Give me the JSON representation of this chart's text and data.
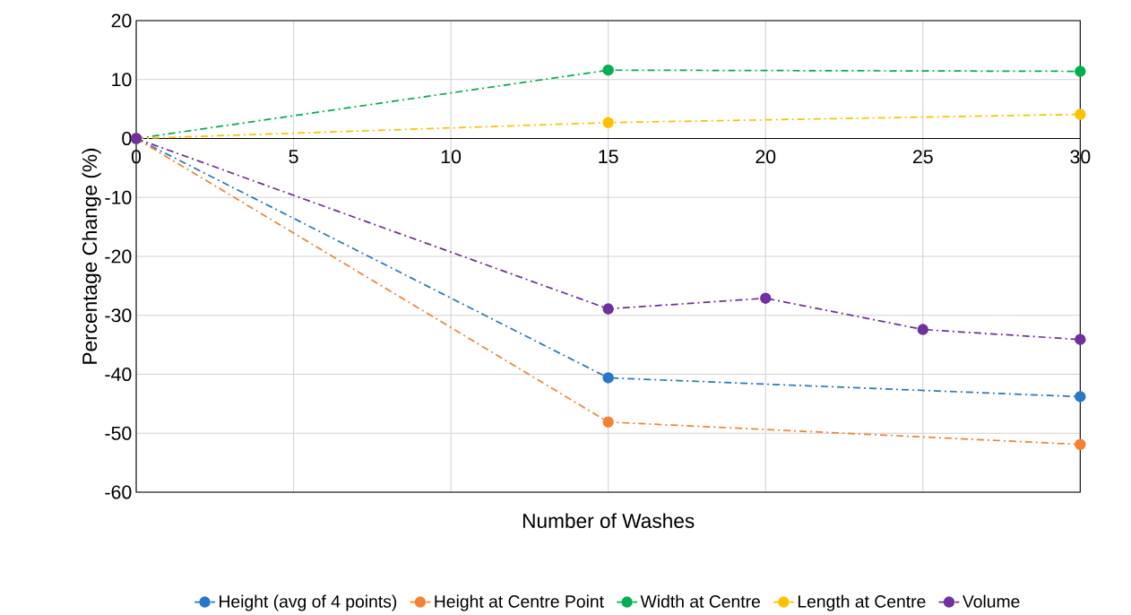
{
  "chart_data": {
    "type": "line",
    "xlabel": "Number of Washes",
    "ylabel": "Percentage Change (%)",
    "xlim": [
      0,
      30
    ],
    "xticks": [
      0,
      5,
      10,
      15,
      20,
      25,
      30
    ],
    "ylim": [
      -60,
      20
    ],
    "yticks": [
      -60,
      -50,
      -40,
      -30,
      -20,
      -10,
      0,
      10,
      20
    ],
    "grid": true,
    "legend": "bottom",
    "marker": "circle",
    "line_style": "dashed",
    "series": [
      {
        "name": "Height (avg of 4 points)",
        "color": "#2878c8",
        "x": [
          0,
          15,
          30
        ],
        "values": [
          0,
          -40.6,
          -43.8
        ]
      },
      {
        "name": "Height at Centre Point",
        "color": "#f58231",
        "x": [
          0,
          15,
          30
        ],
        "values": [
          0,
          -48.1,
          -51.9
        ]
      },
      {
        "name": "Width at Centre",
        "color": "#00b050",
        "x": [
          0,
          15,
          30
        ],
        "values": [
          0,
          11.6,
          11.4
        ]
      },
      {
        "name": "Length at Centre",
        "color": "#ffc000",
        "x": [
          0,
          15,
          30
        ],
        "values": [
          0,
          2.7,
          4.1
        ]
      },
      {
        "name": "Volume",
        "color": "#7030a0",
        "x": [
          0,
          15,
          20,
          25,
          30
        ],
        "values": [
          0,
          -28.9,
          -27.1,
          -32.4,
          -34.1
        ]
      }
    ]
  }
}
